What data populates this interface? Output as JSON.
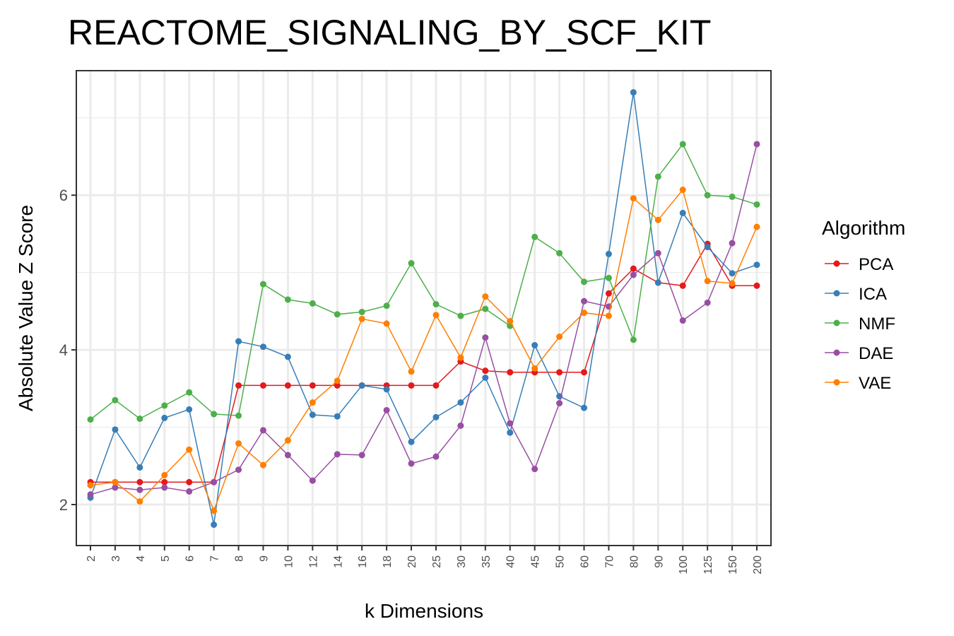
{
  "chart_data": {
    "type": "line",
    "title": "REACTOME_SIGNALING_BY_SCF_KIT",
    "xlabel": "k Dimensions",
    "ylabel": "Absolute Value Z Score",
    "categories": [
      "2",
      "3",
      "4",
      "5",
      "6",
      "7",
      "8",
      "9",
      "10",
      "12",
      "14",
      "16",
      "18",
      "20",
      "25",
      "30",
      "35",
      "40",
      "45",
      "50",
      "60",
      "70",
      "80",
      "90",
      "100",
      "125",
      "150",
      "200"
    ],
    "yticks": [
      2,
      4,
      6
    ],
    "ylim": [
      1.47,
      7.61
    ],
    "grid": true,
    "legend": {
      "title": "Algorithm",
      "position": "right"
    },
    "series": [
      {
        "name": "PCA",
        "color": "#E41A1C",
        "values": [
          2.29,
          2.29,
          2.29,
          2.29,
          2.29,
          2.29,
          3.54,
          3.54,
          3.54,
          3.54,
          3.54,
          3.54,
          3.54,
          3.54,
          3.54,
          3.85,
          3.73,
          3.71,
          3.71,
          3.71,
          3.71,
          4.73,
          5.05,
          4.87,
          4.83,
          5.37,
          4.83,
          4.83
        ]
      },
      {
        "name": "ICA",
        "color": "#377EB8",
        "values": [
          2.09,
          2.97,
          2.48,
          3.12,
          3.23,
          1.74,
          4.11,
          4.04,
          3.91,
          3.16,
          3.14,
          3.54,
          3.49,
          2.81,
          3.13,
          3.32,
          3.64,
          2.93,
          4.06,
          3.4,
          3.25,
          5.24,
          7.33,
          4.87,
          5.77,
          5.33,
          4.99,
          5.1
        ]
      },
      {
        "name": "NMF",
        "color": "#4DAF4A",
        "values": [
          3.1,
          3.35,
          3.11,
          3.28,
          3.45,
          3.17,
          3.15,
          4.85,
          4.65,
          4.6,
          4.46,
          4.49,
          4.57,
          5.12,
          4.59,
          4.44,
          4.53,
          4.31,
          5.46,
          5.25,
          4.88,
          4.93,
          4.13,
          6.24,
          6.66,
          6.0,
          5.98,
          5.88
        ]
      },
      {
        "name": "DAE",
        "color": "#984EA3",
        "values": [
          2.13,
          2.22,
          2.19,
          2.22,
          2.17,
          2.29,
          2.45,
          2.96,
          2.64,
          2.31,
          2.65,
          2.64,
          3.22,
          2.53,
          2.62,
          3.02,
          4.16,
          3.05,
          2.46,
          3.31,
          4.63,
          4.56,
          4.97,
          5.25,
          4.38,
          4.61,
          5.38,
          6.66
        ]
      },
      {
        "name": "VAE",
        "color": "#FF7F00",
        "values": [
          2.25,
          2.29,
          2.04,
          2.38,
          2.71,
          1.92,
          2.79,
          2.51,
          2.83,
          3.32,
          3.6,
          4.4,
          4.34,
          3.72,
          4.45,
          3.9,
          4.69,
          4.37,
          3.76,
          4.17,
          4.48,
          4.44,
          5.96,
          5.68,
          6.07,
          4.89,
          4.86,
          5.59
        ]
      }
    ]
  }
}
